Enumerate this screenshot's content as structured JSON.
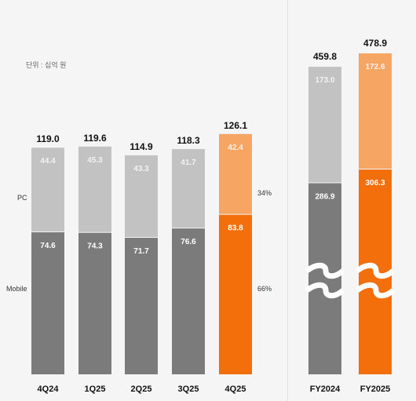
{
  "unit_label": "단위 : 십억 원",
  "row_labels": {
    "pc": "PC",
    "mobile": "Mobile"
  },
  "share_labels": {
    "pc": "34%",
    "mobile": "66%"
  },
  "colors": {
    "pc": "#c2c2c2",
    "mobile": "#7b7b7b",
    "pc_highlight": "#f7a563",
    "mobile_highlight": "#f36f0c",
    "total_text": "#111111",
    "segment_text_dark": "#ffffff",
    "segment_text_light": "#f2f2f2"
  },
  "chart_data": [
    {
      "type": "bar",
      "stacked": true,
      "categories": [
        "4Q24",
        "1Q25",
        "2Q25",
        "3Q25",
        "4Q25"
      ],
      "series": [
        {
          "name": "Mobile",
          "values": [
            74.6,
            74.3,
            71.7,
            76.6,
            83.8
          ]
        },
        {
          "name": "PC",
          "values": [
            44.4,
            45.3,
            43.3,
            41.7,
            42.4
          ]
        }
      ],
      "totals": [
        119.0,
        119.6,
        114.9,
        118.3,
        126.1
      ],
      "highlight_category": "4Q25",
      "ylim": [
        0,
        130
      ]
    },
    {
      "type": "bar",
      "stacked": true,
      "axis_break": true,
      "categories": [
        "FY2024",
        "FY2025"
      ],
      "series": [
        {
          "name": "Mobile",
          "values": [
            286.9,
            306.3
          ]
        },
        {
          "name": "PC",
          "values": [
            173.0,
            172.6
          ]
        }
      ],
      "totals": [
        459.8,
        478.9
      ],
      "highlight_category": "FY2025"
    }
  ]
}
